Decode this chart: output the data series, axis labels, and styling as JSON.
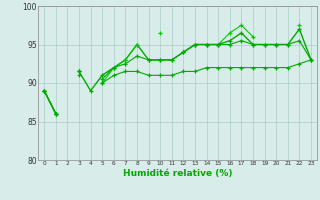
{
  "x": [
    0,
    1,
    2,
    3,
    4,
    5,
    6,
    7,
    8,
    9,
    10,
    11,
    12,
    13,
    14,
    15,
    16,
    17,
    18,
    19,
    20,
    21,
    22,
    23
  ],
  "series": [
    [
      89,
      86,
      null,
      91.5,
      89,
      91,
      92,
      93,
      95,
      93,
      93,
      93,
      94,
      95,
      95,
      95,
      95.5,
      96.5,
      95,
      95,
      95,
      95,
      97,
      93
    ],
    [
      89,
      86,
      null,
      91.5,
      null,
      90,
      92,
      93,
      95,
      null,
      96.5,
      null,
      94,
      95,
      95,
      95,
      96.5,
      97.5,
      96,
      null,
      95,
      null,
      97.5,
      null
    ],
    [
      89,
      86,
      null,
      91.5,
      null,
      90.5,
      92,
      92.5,
      93.5,
      93,
      93,
      93,
      94,
      95,
      95,
      95,
      95,
      95.5,
      95,
      95,
      95,
      95,
      95.5,
      93
    ],
    [
      89,
      86,
      null,
      91,
      null,
      90,
      91,
      91.5,
      91.5,
      91,
      91,
      91,
      91.5,
      91.5,
      92,
      92,
      92,
      92,
      92,
      92,
      92,
      92,
      92.5,
      93
    ]
  ],
  "xlabel": "Humidité relative (%)",
  "ylim": [
    80,
    100
  ],
  "xlim": [
    -0.5,
    23.5
  ],
  "yticks": [
    80,
    85,
    90,
    95,
    100
  ],
  "xticks": [
    0,
    1,
    2,
    3,
    4,
    5,
    6,
    7,
    8,
    9,
    10,
    11,
    12,
    13,
    14,
    15,
    16,
    17,
    18,
    19,
    20,
    21,
    22,
    23
  ],
  "bg_color": "#d8ecea",
  "grid_color": "#a8ccca",
  "colors": [
    "#00aa00",
    "#00cc00",
    "#00aa00",
    "#00aa00"
  ],
  "lws": [
    1.0,
    0.8,
    0.8,
    0.8
  ]
}
